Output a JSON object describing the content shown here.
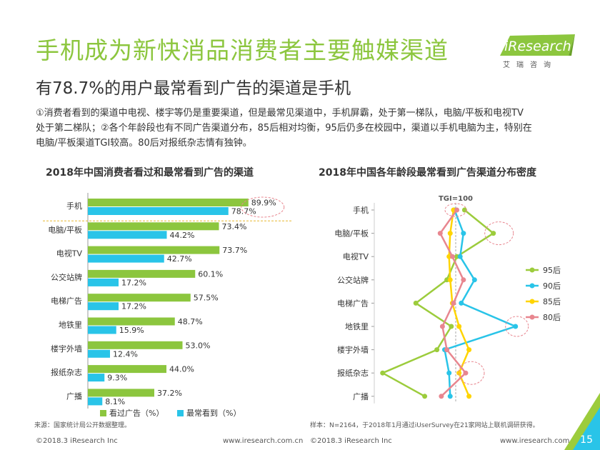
{
  "page": {
    "title": "手机成为新快消品消费者主要触媒渠道",
    "subtitle": "有78.7%的用户最常看到广告的渠道是手机",
    "description_lines": [
      "①消费者看到的渠道中电视、楼宇等仍是重要渠道，但是最常见渠道中，手机屏霸，处于第一梯队，电脑/平板和电视TV",
      "处于第二梯队；②各个年龄段也有不同广告渠道分布，85后相对均衡，95后仍多在校园中，渠道以手机电脑为主，特别在",
      "电脑/平板渠道TGI较高。80后对报纸杂志情有独钟。"
    ],
    "logo_text": "iResearch",
    "logo_sub": "艾瑞咨询",
    "source_left": "来源：国家统计局公开数据整理。",
    "source_right": "样本：N=2164，于2018年1月通过iUserSurvey在21家网站上联机调研获得。",
    "copyright_left": "©2018.3 iResearch Inc",
    "url_left": "www.iresearch.com.cn",
    "copyright_right": "©2018.3 iResearch Inc",
    "url_right": "www.iresearch.com.cn",
    "page_number": "15",
    "colors": {
      "green": "#8cc63e",
      "blue": "#29c4e8",
      "yellow": "#ffd400",
      "pink": "#e8868f"
    }
  },
  "chart_data": [
    {
      "type": "bar",
      "title": "2018年中国消费者看过和最常看到广告的渠道",
      "categories": [
        "手机",
        "电脑/平板",
        "电视TV",
        "公交站牌",
        "电梯广告",
        "地铁里",
        "楼宇外墙",
        "报纸杂志",
        "广播"
      ],
      "series": [
        {
          "name": "看过广告（%）",
          "color": "#8cc63e",
          "values": [
            89.9,
            73.4,
            73.7,
            60.1,
            57.5,
            48.7,
            53.0,
            44.0,
            37.2
          ],
          "labels": [
            "89.9%",
            "73.4%",
            "73.7%",
            "60.1%",
            "57.5%",
            "48.7%",
            "53.0%",
            "44.0%",
            "37.2%"
          ]
        },
        {
          "name": "最常看到（%）",
          "color": "#29c4e8",
          "values": [
            78.7,
            44.2,
            42.7,
            17.2,
            17.2,
            15.9,
            12.4,
            9.3,
            8.1
          ],
          "labels": [
            "78.7%",
            "44.2%",
            "42.7%",
            "17.2%",
            "17.2%",
            "15.9%",
            "12.4%",
            "9.3%",
            "8.1%"
          ]
        }
      ],
      "legend": "bottom"
    },
    {
      "type": "line",
      "title": "2018年中国各年龄段最常看到广告渠道分布密度",
      "reference_label": "TGI=100",
      "reference_value": 100,
      "categories": [
        "手机",
        "电脑/平板",
        "电视TV",
        "公交站牌",
        "电梯广告",
        "地铁里",
        "楼宇外墙",
        "报纸杂志",
        "广播"
      ],
      "series": [
        {
          "name": "95后",
          "color": "#9ccc3c",
          "values": [
            108,
            134,
            101,
            92,
            64,
            96,
            83,
            34,
            72
          ]
        },
        {
          "name": "90后",
          "color": "#29c4e8",
          "values": [
            99,
            107,
            104,
            117,
            105,
            154,
            90,
            94,
            95
          ]
        },
        {
          "name": "85后",
          "color": "#ffd400",
          "values": [
            98,
            95,
            94,
            95,
            97,
            103,
            112,
            103,
            112
          ]
        },
        {
          "name": "80后",
          "color": "#e8868f",
          "values": [
            101,
            86,
            97,
            107,
            98,
            88,
            92,
            109,
            87
          ]
        }
      ],
      "legend": "right"
    }
  ]
}
